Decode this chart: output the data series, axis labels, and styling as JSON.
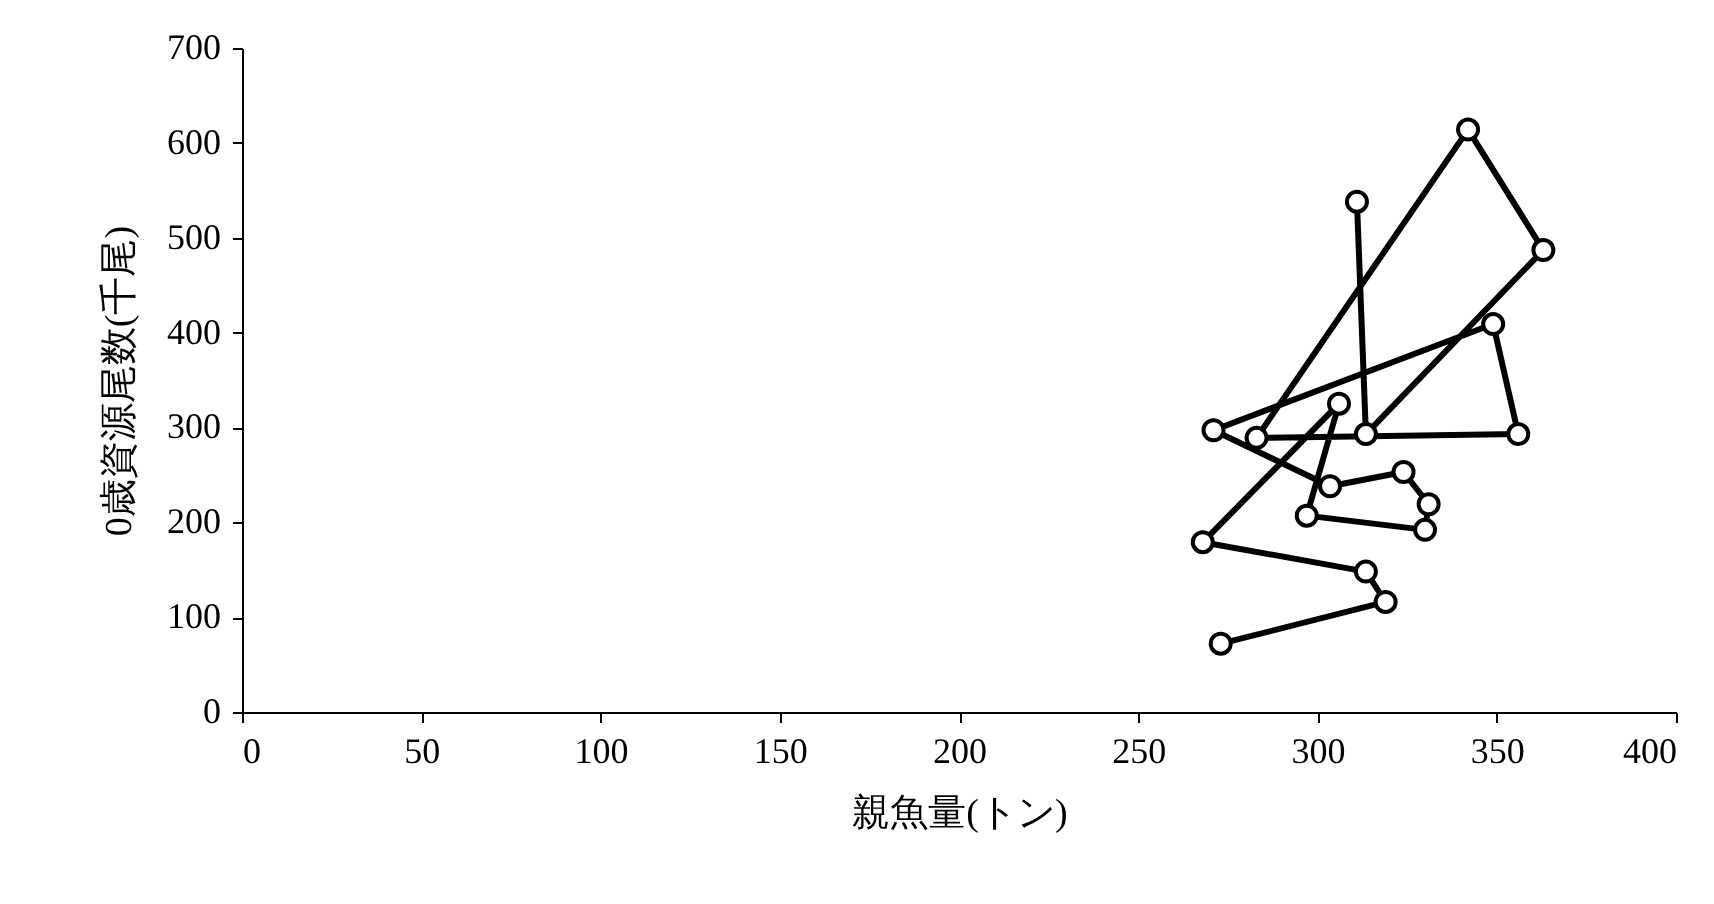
{
  "chart_data": {
    "type": "line",
    "xlabel": "親魚量(トン)",
    "ylabel": "0歳資源尾数(千尾)",
    "xlim": [
      0,
      400
    ],
    "xticks": [
      0,
      50,
      100,
      150,
      200,
      250,
      300,
      350,
      400
    ],
    "ylim": [
      0,
      700
    ],
    "yticks": [
      0,
      100,
      200,
      300,
      400,
      500,
      600,
      700
    ],
    "grid": false,
    "legend": false,
    "marker": "circle",
    "line_style": "solid",
    "series": [
      {
        "color": "#000000",
        "x": [
          273,
          319,
          313.5,
          268,
          306,
          297,
          330,
          331,
          324,
          303.5,
          271,
          349,
          356,
          283,
          342,
          363,
          313.5,
          311
        ],
        "values": [
          72,
          116,
          148,
          179,
          325,
          207,
          192,
          219,
          253,
          238,
          297,
          409,
          293,
          289,
          614,
          487,
          293,
          538
        ]
      }
    ]
  }
}
